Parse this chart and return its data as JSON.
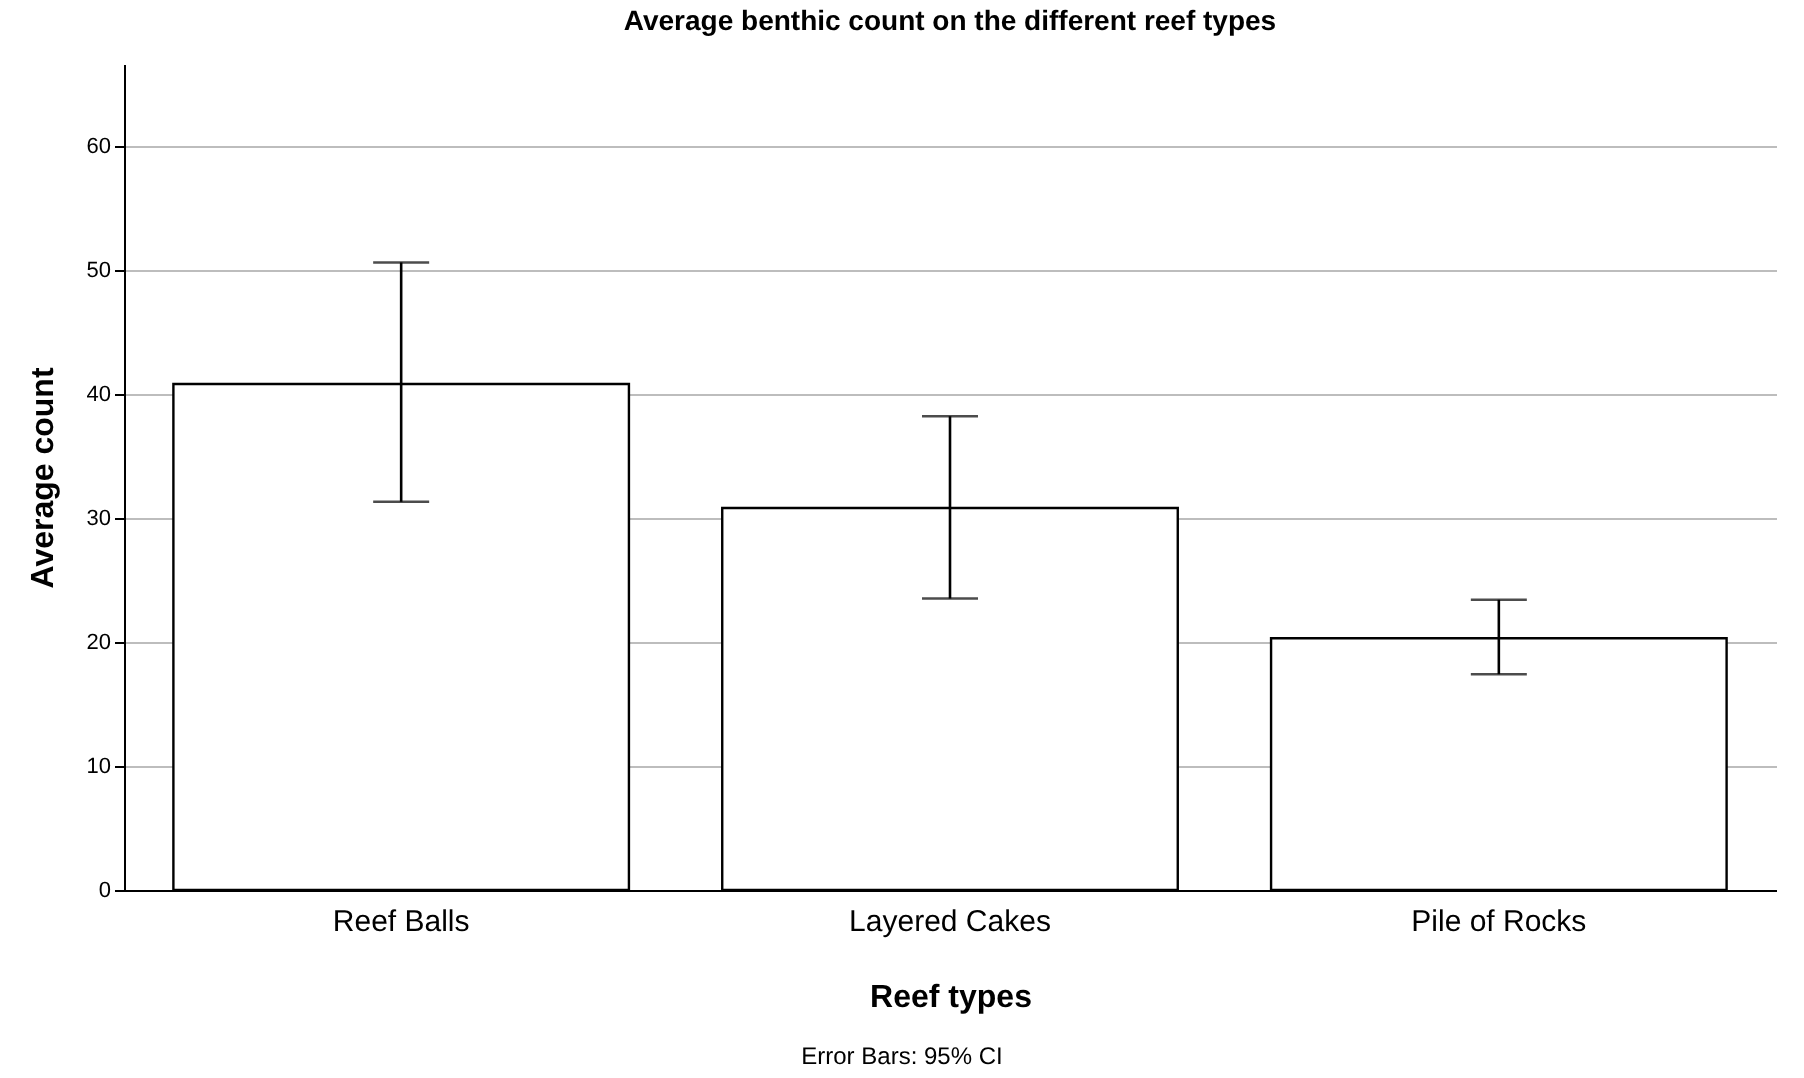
{
  "chart_data": {
    "type": "bar",
    "title": "Average benthic count on the different reef types",
    "xlabel": "Reef types",
    "ylabel": "Average count",
    "categories": [
      "Reef Balls",
      "Layered Cakes",
      "Pile of Rocks"
    ],
    "values": [
      40.8,
      30.8,
      20.3
    ],
    "color": "#ffffff",
    "errors": [
      [
        31.3,
        50.6
      ],
      [
        23.5,
        38.2
      ],
      [
        17.4,
        23.4
      ]
    ],
    "ylim": [
      0,
      66.6
    ],
    "yticks": [
      0,
      10,
      20,
      30,
      40,
      50,
      60
    ],
    "grid": "y",
    "annotations": [
      "Error Bars: 95% CI"
    ]
  }
}
